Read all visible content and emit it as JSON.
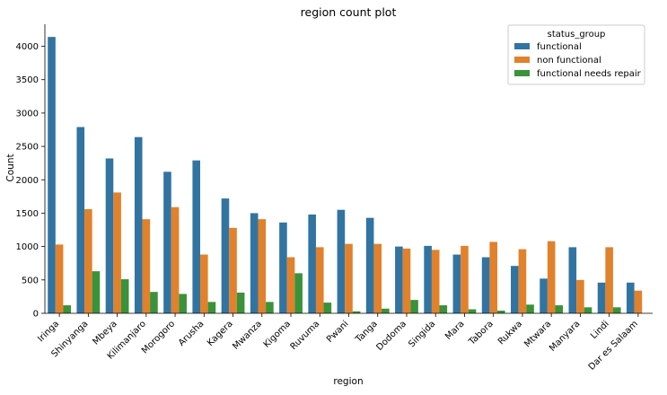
{
  "chart_data": {
    "type": "bar",
    "title": "region count plot",
    "xlabel": "region",
    "ylabel": "Count",
    "ylim": [
      0,
      4330
    ],
    "yticks": [
      0,
      500,
      1000,
      1500,
      2000,
      2500,
      3000,
      3500,
      4000
    ],
    "grid": false,
    "legend": {
      "title": "status_group",
      "placement": "top-right"
    },
    "categories": [
      "Iringa",
      "Shinyanga",
      "Mbeya",
      "Kilimanjaro",
      "Morogoro",
      "Arusha",
      "Kagera",
      "Mwanza",
      "Kigoma",
      "Ruvuma",
      "Pwani",
      "Tanga",
      "Dodoma",
      "Singida",
      "Mara",
      "Tabora",
      "Rukwa",
      "Mtwara",
      "Manyara",
      "Lindi",
      "Dar es Salaam"
    ],
    "series": [
      {
        "name": "functional",
        "color": "#3274a1",
        "values": [
          4140,
          2790,
          2320,
          2640,
          2120,
          2290,
          1720,
          1500,
          1360,
          1480,
          1550,
          1430,
          1000,
          1010,
          880,
          840,
          710,
          520,
          990,
          460,
          460
        ]
      },
      {
        "name": "non functional",
        "color": "#e1812c",
        "values": [
          1030,
          1560,
          1810,
          1410,
          1590,
          880,
          1280,
          1410,
          840,
          990,
          1040,
          1040,
          970,
          950,
          1010,
          1070,
          960,
          1080,
          500,
          990,
          340
        ]
      },
      {
        "name": "functional needs repair",
        "color": "#3a923a",
        "values": [
          120,
          630,
          510,
          320,
          290,
          170,
          310,
          170,
          600,
          160,
          30,
          70,
          200,
          120,
          60,
          40,
          130,
          120,
          90,
          90,
          0
        ]
      }
    ]
  }
}
